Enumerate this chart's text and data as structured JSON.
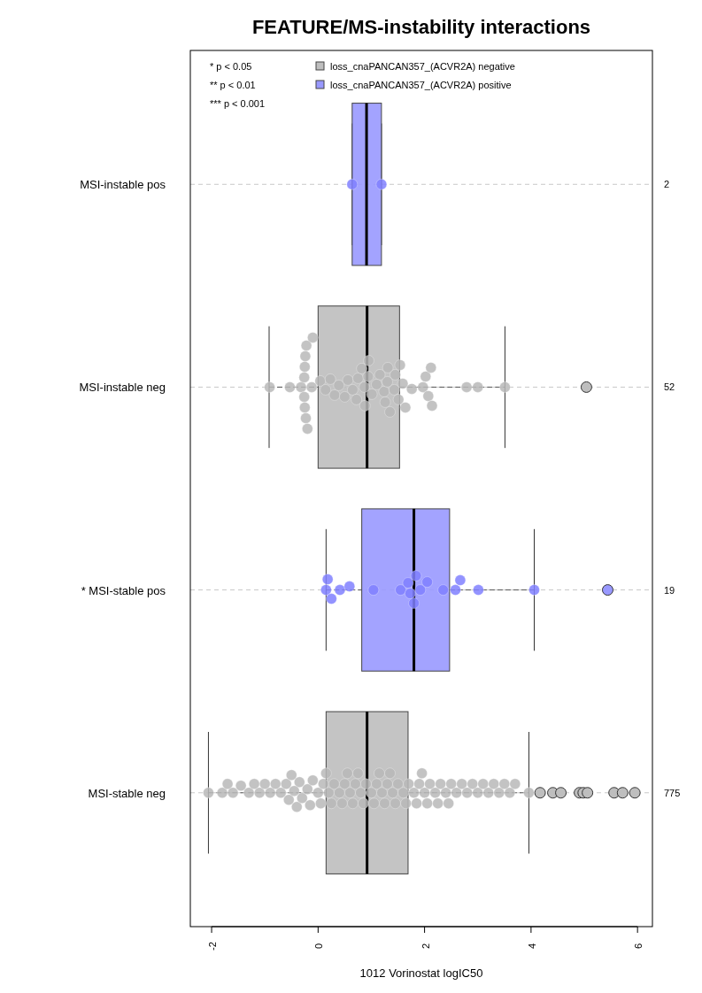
{
  "chart_data": {
    "type": "box",
    "orientation": "horizontal",
    "title": "FEATURE/MS-instability interactions",
    "xlabel": "1012 Vorinostat logIC50",
    "categories": [
      "MSI-instable pos",
      "MSI-instable neg",
      "* MSI-stable pos",
      "MSI-stable neg"
    ],
    "xlim": [
      -2.4,
      6.28
    ],
    "xticks": [
      -2,
      0,
      2,
      4,
      6
    ],
    "grid": "y",
    "legend": "top",
    "annotations": [
      "* p < 0.05",
      "** p < 0.01",
      "*** p < 0.001"
    ],
    "y2_categories": [
      "2",
      "52",
      "19",
      "775"
    ],
    "series": [
      {
        "name": "loss_cnaPANCAN357_(ACVR2A) negative",
        "color": "#bebebe",
        "boxes": [
          null,
          {
            "low": -0.92,
            "q1": 0,
            "median": 0.92,
            "q3": 1.53,
            "high": 3.51,
            "outliers": [
              5.04
            ]
          },
          null,
          {
            "low": -2.06,
            "q1": 0.15,
            "median": 0.92,
            "q3": 1.69,
            "high": 3.96,
            "outliers": [
              4.17,
              4.41,
              4.56,
              4.91,
              4.98,
              5.06,
              5.56,
              5.72,
              5.95
            ]
          }
        ]
      },
      {
        "name": "loss_cnaPANCAN357_(ACVR2A) positive",
        "color": "#9999ff",
        "boxes": [
          {
            "low": 0.64,
            "q1": 0.64,
            "median": 0.91,
            "q3": 1.19,
            "high": 1.19
          },
          null,
          {
            "low": 0.15,
            "q1": 0.82,
            "median": 1.8,
            "q3": 2.47,
            "high": 4.06,
            "outliers": [
              5.44
            ]
          },
          null
        ]
      },
      {
        "type": "scatter",
        "color": "#8080ff",
        "x": [
          "MSI-instable pos",
          "MSI-instable pos"
        ],
        "values": [
          0.64,
          1.19
        ]
      },
      {
        "type": "scatter",
        "color": "#b8b8b8",
        "x": [
          "MSI-instable neg",
          "MSI-instable neg",
          "MSI-instable neg",
          "MSI-instable neg",
          "MSI-instable neg",
          "MSI-instable neg",
          "MSI-instable neg",
          "MSI-instable neg",
          "MSI-instable neg",
          "MSI-instable neg",
          "MSI-instable neg",
          "MSI-instable neg",
          "MSI-instable neg",
          "MSI-instable neg",
          "MSI-instable neg",
          "MSI-instable neg",
          "MSI-instable neg",
          "MSI-instable neg",
          "MSI-instable neg",
          "MSI-instable neg",
          "MSI-instable neg",
          "MSI-instable neg",
          "MSI-instable neg",
          "MSI-instable neg",
          "MSI-instable neg",
          "MSI-instable neg",
          "MSI-instable neg",
          "MSI-instable neg",
          "MSI-instable neg",
          "MSI-instable neg",
          "MSI-instable neg",
          "MSI-instable neg",
          "MSI-instable neg",
          "MSI-instable neg",
          "MSI-instable neg",
          "MSI-instable neg",
          "MSI-instable neg",
          "MSI-instable neg",
          "MSI-instable neg",
          "MSI-instable neg",
          "MSI-instable neg",
          "MSI-instable neg",
          "MSI-instable neg",
          "MSI-instable neg",
          "MSI-instable neg",
          "MSI-instable neg",
          "MSI-instable neg",
          "MSI-instable neg",
          "MSI-instable neg",
          "MSI-instable neg",
          "MSI-instable neg"
        ],
        "values": [
          -0.91,
          -0.53,
          -0.32,
          -0.26,
          -0.26,
          -0.25,
          -0.25,
          -0.24,
          -0.23,
          -0.22,
          -0.2,
          -0.12,
          0.04,
          0.14,
          0.23,
          0.31,
          0.39,
          0.56,
          0.65,
          0.72,
          0.75,
          0.82,
          0.87,
          0.88,
          0.94,
          0.95,
          1.01,
          1.16,
          1.24,
          1.26,
          1.31,
          1.35,
          1.43,
          1.45,
          1.51,
          1.54,
          1.59,
          1.64,
          1.76,
          1.97,
          2.02,
          2.07,
          2.12,
          2.14,
          2.79,
          3.0,
          3.51,
          0.5,
          1.1,
          1.3,
          -0.1
        ]
      },
      {
        "type": "scatter",
        "color": "#8080ff",
        "x": [
          "* MSI-stable pos",
          "* MSI-stable pos",
          "* MSI-stable pos",
          "* MSI-stable pos",
          "* MSI-stable pos",
          "* MSI-stable pos",
          "* MSI-stable pos",
          "* MSI-stable pos",
          "* MSI-stable pos",
          "* MSI-stable pos",
          "* MSI-stable pos",
          "* MSI-stable pos",
          "* MSI-stable pos",
          "* MSI-stable pos",
          "* MSI-stable pos",
          "* MSI-stable pos",
          "* MSI-stable pos",
          "* MSI-stable pos"
        ],
        "values": [
          0.15,
          0.18,
          0.25,
          0.41,
          0.59,
          1.04,
          1.55,
          1.69,
          1.73,
          1.8,
          1.84,
          1.92,
          2.05,
          2.35,
          2.58,
          2.67,
          3.01,
          4.06
        ]
      },
      {
        "type": "scatter",
        "color": "#b8b8b8",
        "x": [
          "MSI-stable neg",
          "MSI-stable neg",
          "MSI-stable neg",
          "MSI-stable neg",
          "MSI-stable neg",
          "MSI-stable neg",
          "MSI-stable neg",
          "MSI-stable neg",
          "MSI-stable neg",
          "MSI-stable neg",
          "MSI-stable neg",
          "MSI-stable neg",
          "MSI-stable neg",
          "MSI-stable neg",
          "MSI-stable neg",
          "MSI-stable neg",
          "MSI-stable neg",
          "MSI-stable neg",
          "MSI-stable neg",
          "MSI-stable neg",
          "MSI-stable neg",
          "MSI-stable neg",
          "MSI-stable neg",
          "MSI-stable neg",
          "MSI-stable neg",
          "MSI-stable neg",
          "MSI-stable neg",
          "MSI-stable neg",
          "MSI-stable neg",
          "MSI-stable neg",
          "MSI-stable neg",
          "MSI-stable neg",
          "MSI-stable neg",
          "MSI-stable neg",
          "MSI-stable neg",
          "MSI-stable neg",
          "MSI-stable neg",
          "MSI-stable neg",
          "MSI-stable neg",
          "MSI-stable neg",
          "MSI-stable neg",
          "MSI-stable neg",
          "MSI-stable neg",
          "MSI-stable neg",
          "MSI-stable neg",
          "MSI-stable neg",
          "MSI-stable neg",
          "MSI-stable neg",
          "MSI-stable neg",
          "MSI-stable neg",
          "MSI-stable neg",
          "MSI-stable neg",
          "MSI-stable neg",
          "MSI-stable neg",
          "MSI-stable neg",
          "MSI-stable neg",
          "MSI-stable neg",
          "MSI-stable neg",
          "MSI-stable neg",
          "MSI-stable neg",
          "MSI-stable neg",
          "MSI-stable neg",
          "MSI-stable neg",
          "MSI-stable neg",
          "MSI-stable neg",
          "MSI-stable neg",
          "MSI-stable neg",
          "MSI-stable neg",
          "MSI-stable neg",
          "MSI-stable neg",
          "MSI-stable neg",
          "MSI-stable neg",
          "MSI-stable neg",
          "MSI-stable neg",
          "MSI-stable neg",
          "MSI-stable neg",
          "MSI-stable neg",
          "MSI-stable neg",
          "MSI-stable neg",
          "MSI-stable neg"
        ],
        "values": [
          -2.06,
          -1.8,
          -1.7,
          -1.6,
          -1.45,
          -1.3,
          -1.2,
          -1.1,
          -1.0,
          -0.9,
          -0.8,
          -0.7,
          -0.6,
          -0.5,
          -0.4,
          -0.3,
          -0.2,
          -0.1,
          0,
          0.1,
          0.2,
          0.3,
          0.4,
          0.5,
          0.6,
          0.7,
          0.8,
          0.9,
          1.0,
          1.1,
          1.2,
          1.3,
          1.4,
          1.5,
          1.6,
          1.7,
          1.8,
          1.9,
          2.0,
          2.1,
          2.2,
          2.3,
          2.4,
          2.5,
          2.6,
          -0.55,
          -0.35,
          -0.15,
          0.05,
          0.25,
          0.45,
          0.65,
          0.85,
          1.05,
          1.25,
          1.45,
          1.65,
          1.85,
          2.05,
          2.25,
          2.45,
          -0.45,
          0.15,
          0.75,
          1.35,
          1.95,
          0.55,
          1.15,
          2.7,
          2.8,
          2.9,
          3.0,
          3.1,
          3.2,
          3.3,
          3.4,
          3.5,
          3.6,
          3.7,
          3.96
        ]
      }
    ]
  }
}
